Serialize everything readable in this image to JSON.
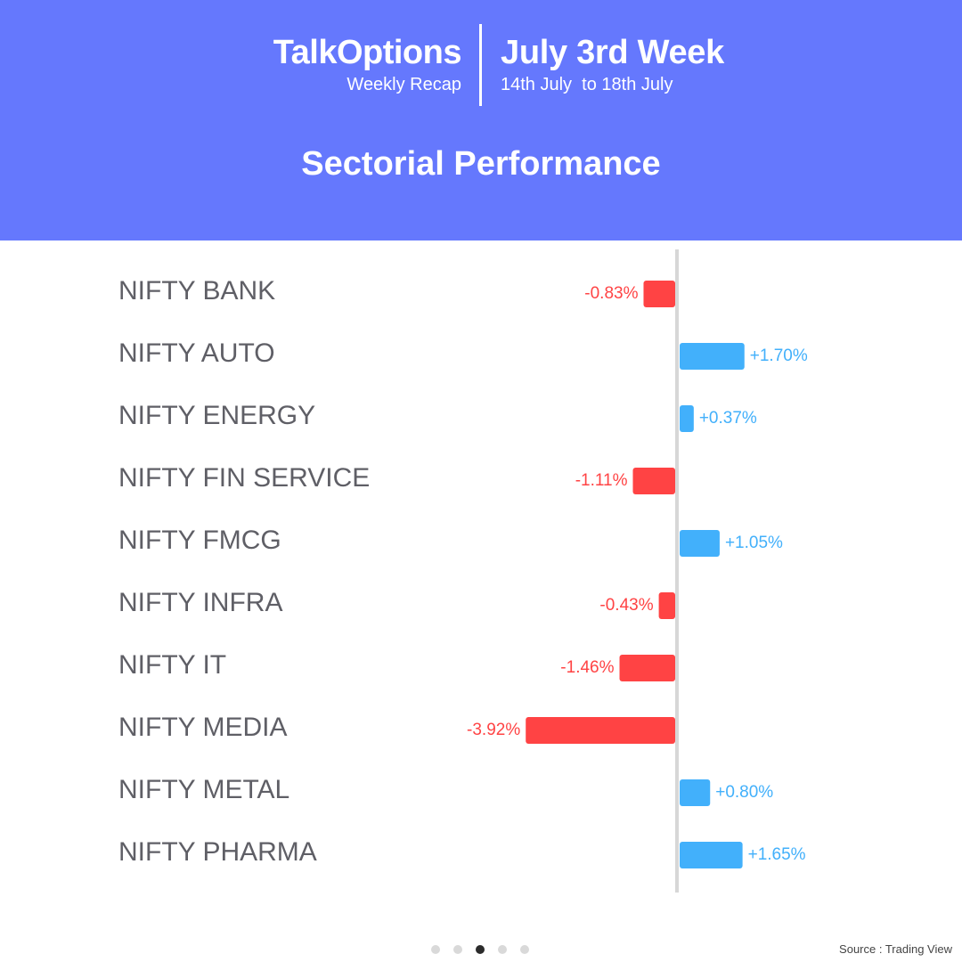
{
  "header": {
    "brand": "TalkOptions",
    "brand_sub": "Weekly Recap",
    "week_title": "July 3rd Week",
    "week_range": "14th July  to 18th July",
    "page_title": "Sectorial Performance"
  },
  "colors": {
    "header_bg": "#6578fd",
    "positive": "#42b0fb",
    "negative": "#ff4344",
    "axis": "#d7d7d7",
    "label_text": "#5f5f66"
  },
  "chart_data": {
    "type": "bar",
    "orientation": "horizontal",
    "categories": [
      "NIFTY BANK",
      "NIFTY AUTO",
      "NIFTY ENERGY",
      "NIFTY FIN SERVICE",
      "NIFTY FMCG",
      "NIFTY INFRA",
      "NIFTY IT",
      "NIFTY MEDIA",
      "NIFTY METAL",
      "NIFTY PHARMA"
    ],
    "values": [
      -0.83,
      1.7,
      0.37,
      -1.11,
      1.05,
      -0.43,
      -1.46,
      -3.92,
      0.8,
      1.65
    ],
    "value_labels": [
      "-0.83%",
      "+1.70%",
      "+0.37%",
      "-1.11%",
      "+1.05%",
      "-0.43%",
      "-1.46%",
      "-3.92%",
      "+0.80%",
      "+1.65%"
    ],
    "unit": "%",
    "title": "Sectorial Performance",
    "xlabel": "",
    "ylabel": "",
    "grid": false
  },
  "pager": {
    "count": 5,
    "active": 2
  },
  "source": "Source : Trading View"
}
